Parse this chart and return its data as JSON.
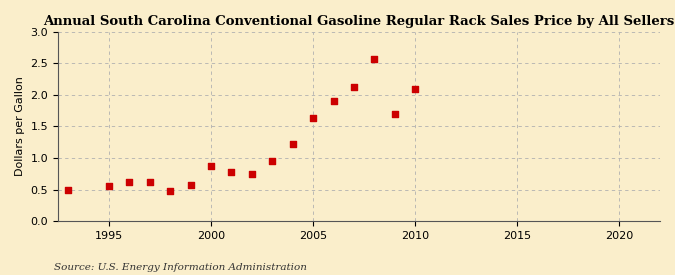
{
  "title": "Annual South Carolina Conventional Gasoline Regular Rack Sales Price by All Sellers",
  "ylabel": "Dollars per Gallon",
  "source": "Source: U.S. Energy Information Administration",
  "background_color": "#faeecb",
  "years": [
    1993,
    1995,
    1996,
    1997,
    1998,
    1999,
    2000,
    2001,
    2002,
    2003,
    2004,
    2005,
    2006,
    2007,
    2008,
    2009,
    2010
  ],
  "values": [
    0.5,
    0.55,
    0.62,
    0.62,
    0.47,
    0.57,
    0.87,
    0.78,
    0.75,
    0.95,
    1.23,
    1.63,
    1.91,
    2.12,
    2.57,
    1.7,
    2.1
  ],
  "marker_color": "#cc0000",
  "xlim": [
    1992.5,
    2022
  ],
  "ylim": [
    0.0,
    3.0
  ],
  "xticks": [
    1995,
    2000,
    2005,
    2010,
    2015,
    2020
  ],
  "yticks": [
    0.0,
    0.5,
    1.0,
    1.5,
    2.0,
    2.5,
    3.0
  ],
  "title_fontsize": 9.5,
  "label_fontsize": 8,
  "source_fontsize": 7.5,
  "tick_fontsize": 8,
  "grid_color": "#b0b0b0",
  "marker_size": 4
}
